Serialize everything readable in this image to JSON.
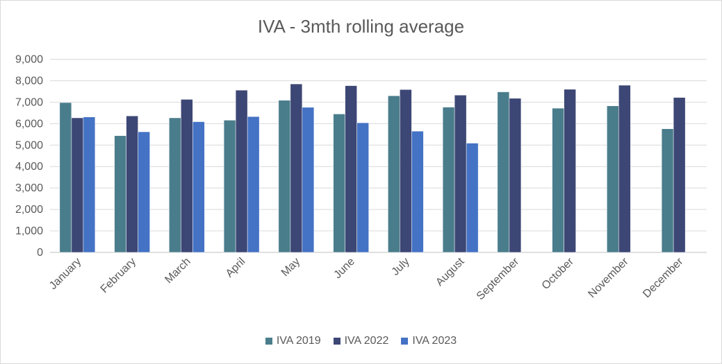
{
  "chart_data": {
    "type": "bar",
    "title": "IVA - 3mth rolling average",
    "xlabel": "",
    "ylabel": "",
    "ylim": [
      0,
      9000
    ],
    "yticks": [
      "0",
      "1,000",
      "2,000",
      "3,000",
      "4,000",
      "5,000",
      "6,000",
      "7,000",
      "8,000",
      "9,000"
    ],
    "grid": true,
    "legend_position": "bottom",
    "categories": [
      "January",
      "February",
      "March",
      "April",
      "May",
      "June",
      "July",
      "August",
      "September",
      "October",
      "November",
      "December"
    ],
    "series": [
      {
        "name": "IVA 2019",
        "color": "#4a7d8c",
        "values": [
          6980,
          5440,
          6270,
          6160,
          7090,
          6450,
          7300,
          6770,
          7480,
          6720,
          6830,
          5760
        ]
      },
      {
        "name": "IVA 2022",
        "color": "#3d4775",
        "values": [
          6270,
          6360,
          7130,
          7560,
          7850,
          7770,
          7590,
          7330,
          7180,
          7600,
          7790,
          7220
        ]
      },
      {
        "name": "IVA 2023",
        "color": "#4472c4",
        "values": [
          6310,
          5620,
          6090,
          6330,
          6760,
          6040,
          5650,
          5090,
          null,
          null,
          null,
          null
        ]
      }
    ]
  }
}
